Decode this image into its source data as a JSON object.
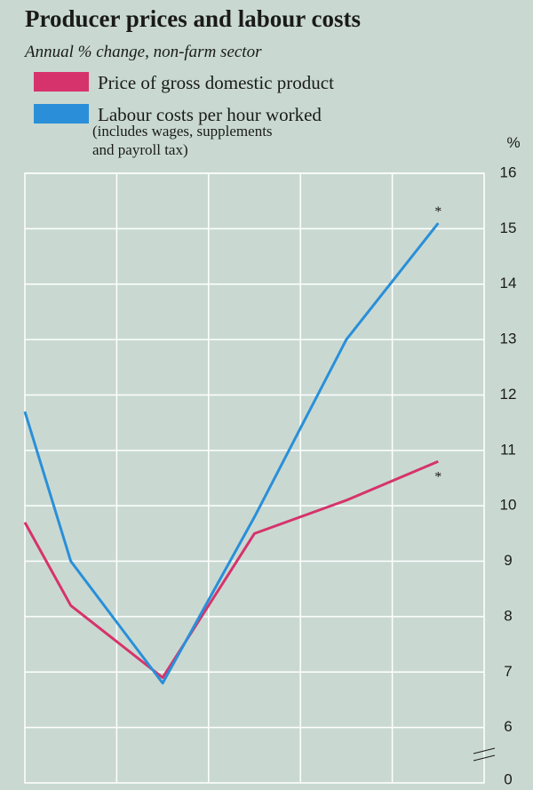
{
  "chart_data": {
    "type": "line",
    "title": "Producer prices and labour costs",
    "subtitle": "Annual % change, non-farm sector",
    "y_unit": "%",
    "y_break_label": "0",
    "x": [
      0,
      0.5,
      1.5,
      2.5,
      3.5,
      4.5
    ],
    "xlim": [
      0,
      5
    ],
    "xticks": [
      1,
      2,
      3,
      4
    ],
    "ylim": [
      5,
      16
    ],
    "yticks": [
      6,
      7,
      8,
      9,
      10,
      11,
      12,
      13,
      14,
      15,
      16
    ],
    "grid": true,
    "series": [
      {
        "name": "Price of gross domestic product",
        "color": "#d6336c",
        "values": [
          9.7,
          8.2,
          6.9,
          9.5,
          10.1,
          10.8
        ],
        "annotation": "*"
      },
      {
        "name": "Labour costs per hour worked",
        "color": "#2a8fd8",
        "values": [
          11.7,
          9.0,
          6.8,
          9.8,
          13.0,
          15.1
        ],
        "annotation": "*",
        "legend_note": [
          "(includes wages, supplements",
          "and payroll tax)"
        ]
      }
    ]
  }
}
